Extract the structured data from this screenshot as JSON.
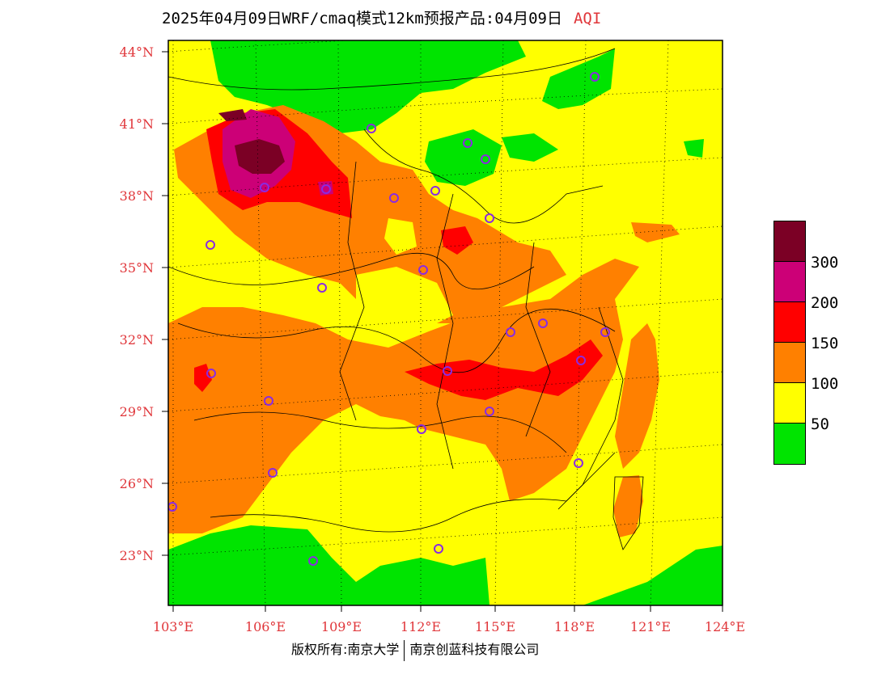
{
  "title": {
    "text": "2025年04月09日WRF/cmaq模式12km预报产品:04月09日",
    "variable": "AQI"
  },
  "axes": {
    "lat_labels": [
      "44°N",
      "41°N",
      "38°N",
      "35°N",
      "32°N",
      "29°N",
      "26°N",
      "23°N"
    ],
    "lon_labels": [
      "103°E",
      "106°E",
      "109°E",
      "112°E",
      "115°E",
      "118°E",
      "121°E",
      "124°E"
    ],
    "lat_range": [
      21,
      44.5
    ],
    "lon_range": [
      102.8,
      124
    ]
  },
  "legend": {
    "colors": [
      "#7b0025",
      "#cc0077",
      "#ff0000",
      "#ff8000",
      "#ffff00",
      "#00e400"
    ],
    "ticks": [
      "300",
      "200",
      "150",
      "100",
      "50"
    ]
  },
  "footer": {
    "left": "版权所有:南京大学",
    "right": "南京创蓝科技有限公司"
  },
  "palette": {
    "good": "#00e400",
    "moderate": "#ffff00",
    "usg": "#ff8000",
    "unhealthy": "#ff0000",
    "very_unhealthy": "#cc0077",
    "hazardous": "#7b0025",
    "station_marker": "#8a2be2",
    "label_red": "#e0363a"
  }
}
